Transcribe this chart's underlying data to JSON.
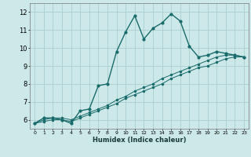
{
  "xlabel": "Humidex (Indice chaleur)",
  "bg_color": "#cce8e8",
  "grid_color": "#aacfcf",
  "line_color": "#1a6b6b",
  "xlim": [
    -0.5,
    23.5
  ],
  "ylim": [
    5.5,
    12.5
  ],
  "xticks": [
    0,
    1,
    2,
    3,
    4,
    5,
    6,
    7,
    8,
    9,
    10,
    11,
    12,
    13,
    14,
    15,
    16,
    17,
    18,
    19,
    20,
    21,
    22,
    23
  ],
  "yticks": [
    6,
    7,
    8,
    9,
    10,
    11,
    12
  ],
  "series": [
    {
      "x": [
        0,
        1,
        2,
        3,
        4,
        5,
        6,
        7,
        8,
        9,
        10,
        11,
        12,
        13,
        14,
        15,
        16,
        17,
        18,
        19,
        20,
        21,
        22,
        23
      ],
      "y": [
        5.8,
        6.1,
        6.1,
        6.0,
        5.8,
        6.5,
        6.6,
        7.9,
        8.0,
        9.8,
        10.9,
        11.8,
        10.5,
        11.1,
        11.4,
        11.9,
        11.5,
        10.1,
        9.5,
        9.6,
        9.8,
        9.7,
        9.6,
        9.5
      ]
    },
    {
      "x": [
        0,
        1,
        2,
        3,
        4,
        5,
        6,
        7,
        8,
        9,
        10,
        11,
        12,
        13,
        14,
        15,
        16,
        17,
        18,
        19,
        20,
        21,
        22,
        23
      ],
      "y": [
        5.8,
        6.0,
        6.1,
        6.1,
        6.0,
        6.2,
        6.4,
        6.6,
        6.8,
        7.1,
        7.3,
        7.6,
        7.8,
        8.0,
        8.3,
        8.5,
        8.7,
        8.9,
        9.1,
        9.3,
        9.5,
        9.6,
        9.6,
        9.5
      ]
    },
    {
      "x": [
        0,
        1,
        2,
        3,
        4,
        5,
        6,
        7,
        8,
        9,
        10,
        11,
        12,
        13,
        14,
        15,
        16,
        17,
        18,
        19,
        20,
        21,
        22,
        23
      ],
      "y": [
        5.8,
        5.9,
        6.0,
        6.0,
        5.9,
        6.1,
        6.3,
        6.5,
        6.7,
        6.9,
        7.2,
        7.4,
        7.6,
        7.8,
        8.0,
        8.3,
        8.5,
        8.7,
        8.9,
        9.0,
        9.2,
        9.4,
        9.5,
        9.5
      ]
    }
  ]
}
